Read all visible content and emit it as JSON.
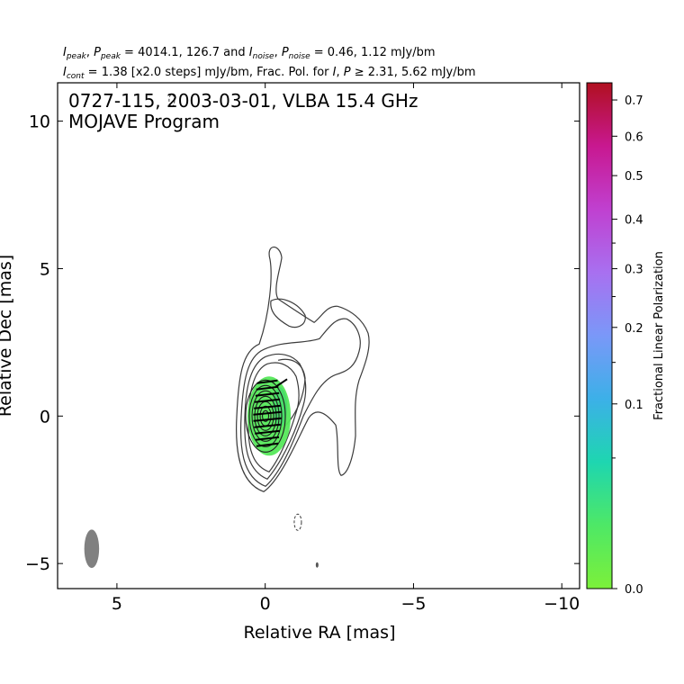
{
  "header": {
    "line1": {
      "i_peak": "I",
      "i_peak_sub": "peak",
      "p_peak": "P",
      "p_peak_sub": "peak",
      "peak_values": " = 4014.1, 126.7 and ",
      "i_noise": "I",
      "i_noise_sub": "noise",
      "p_noise": "P",
      "p_noise_sub": "noise",
      "noise_values": " = 0.46, 1.12 mJy/bm",
      "comma": ", "
    },
    "line2": {
      "i_cont": "I",
      "i_cont_sub": "cont",
      "cont_values": " = 1.38 [x2.0 steps] mJy/bm, Frac. Pol. for ",
      "i_sym": "I",
      "p_sym": "P",
      "threshold": " ≥ 2.31, 5.62 mJy/bm",
      "comma": ", "
    }
  },
  "chart_data": {
    "type": "contour",
    "title_lines": [
      "0727-115, 2003-03-01, VLBA 15.4 GHz",
      "MOJAVE Program"
    ],
    "xlabel": "Relative RA [mas]",
    "ylabel": "Relative Dec [mas]",
    "xlim": [
      7.0,
      -10.6
    ],
    "ylim": [
      -5.85,
      11.3
    ],
    "x_ticks": [
      5,
      0,
      -5,
      -10
    ],
    "x_tick_labels": [
      "5",
      "0",
      "−5",
      "−10"
    ],
    "y_ticks": [
      -5,
      0,
      5,
      10
    ],
    "y_tick_labels": [
      "−5",
      "0",
      "5",
      "10"
    ],
    "contour_color": "#3c3c3c",
    "negative_contour_color": "#3c3c3c",
    "polarization_fill_color": "#55e85a",
    "evpa_color": "#000000",
    "beam": {
      "x": 5.85,
      "y": -4.5,
      "major_mas": 1.3,
      "minor_mas": 0.5,
      "position_angle_deg": 0,
      "color": "#808080"
    },
    "core": {
      "x": 0.05,
      "y": 0.0
    },
    "colorbar": {
      "label": "Fractional Linear Polarization",
      "range": [
        0.0,
        0.75
      ],
      "labeled_ticks": [
        0.0,
        0.1,
        0.2,
        0.3,
        0.4,
        0.5,
        0.6,
        0.7
      ],
      "tick_labels": [
        "0.0",
        "0.1",
        "0.2",
        "0.3",
        "0.4",
        "0.5",
        "0.6",
        "0.7"
      ],
      "minor_ticks": [
        0.05,
        0.15,
        0.25,
        0.35
      ],
      "colormap": [
        "#7cf03a",
        "#4ee866",
        "#1ed6b0",
        "#3cb0e8",
        "#7a98f8",
        "#a870f0",
        "#c040d0",
        "#c81890",
        "#b01020"
      ]
    }
  }
}
